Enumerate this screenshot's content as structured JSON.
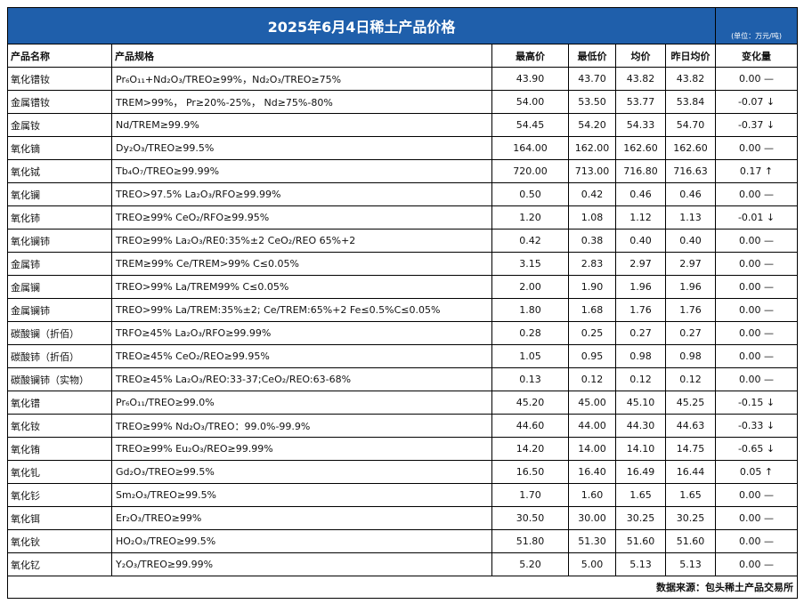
{
  "title": "2025年6月4日稀土产品价格",
  "unit_note": "(单位：万元/吨)",
  "headers": {
    "name": "产品名称",
    "spec": "产品规格",
    "high": "最高价",
    "low": "最低价",
    "avg": "均价",
    "prev_avg": "昨日均价",
    "change": "变化量"
  },
  "rows": [
    {
      "name": "氧化镨钕",
      "spec": "Pr₆O₁₁+Nd₂O₃/TREO≥99%，Nd₂O₃/TREO≥75%",
      "high": "43.90",
      "low": "43.70",
      "avg": "43.82",
      "prev_avg": "43.82",
      "change": "0.00 —"
    },
    {
      "name": "金属镨钕",
      "spec": "TREM>99%，  Pr≥20%-25%，  Nd≥75%-80%",
      "high": "54.00",
      "low": "53.50",
      "avg": "53.77",
      "prev_avg": "53.84",
      "change": "-0.07 ↓"
    },
    {
      "name": "金属钕",
      "spec": "Nd/TREM≥99.9%",
      "high": "54.45",
      "low": "54.20",
      "avg": "54.33",
      "prev_avg": "54.70",
      "change": "-0.37 ↓"
    },
    {
      "name": "氧化镝",
      "spec": "Dy₂O₃/TREO≥99.5%",
      "high": "164.00",
      "low": "162.00",
      "avg": "162.60",
      "prev_avg": "162.60",
      "change": "0.00 —"
    },
    {
      "name": "氧化铽",
      "spec": "Tb₄O₇/TREO≥99.99%",
      "high": "720.00",
      "low": "713.00",
      "avg": "716.80",
      "prev_avg": "716.63",
      "change": "0.17 ↑"
    },
    {
      "name": "氧化镧",
      "spec": "TREO>97.5%   La₂O₃/RFO≥99.99%",
      "high": "0.50",
      "low": "0.42",
      "avg": "0.46",
      "prev_avg": "0.46",
      "change": "0.00 —"
    },
    {
      "name": "氧化铈",
      "spec": "TREO≥99%   CeO₂/RFO≥99.95%",
      "high": "1.20",
      "low": "1.08",
      "avg": "1.12",
      "prev_avg": "1.13",
      "change": "-0.01 ↓"
    },
    {
      "name": "氧化镧铈",
      "spec": "TREO≥99%   La₂O₃/RE0:35%±2  CeO₂/REO  65%+2",
      "high": "0.42",
      "low": "0.38",
      "avg": "0.40",
      "prev_avg": "0.40",
      "change": "0.00 —"
    },
    {
      "name": "金属铈",
      "spec": "TREM≥99%    Ce/TREM>99%   C≤0.05%",
      "high": "3.15",
      "low": "2.83",
      "avg": "2.97",
      "prev_avg": "2.97",
      "change": "0.00 —"
    },
    {
      "name": "金属镧",
      "spec": "TREO>99%  La/TREM99%  C≤0.05%",
      "high": "2.00",
      "low": "1.90",
      "avg": "1.96",
      "prev_avg": "1.96",
      "change": "0.00 —"
    },
    {
      "name": "金属镧铈",
      "spec": "TREO>99%  La/TREM:35%±2;  Ce/TREM:65%+2 Fe≤0.5%C≤0.05%",
      "high": "1.80",
      "low": "1.68",
      "avg": "1.76",
      "prev_avg": "1.76",
      "change": "0.00 —"
    },
    {
      "name": "碳酸镧（折佰）",
      "spec": "TRFO≥45%  La₂O₃/RFO≥99.99%",
      "high": "0.28",
      "low": "0.25",
      "avg": "0.27",
      "prev_avg": "0.27",
      "change": "0.00 —"
    },
    {
      "name": "碳酸铈（折佰）",
      "spec": "TREO≥45%  CeO₂/REO≥99.95%",
      "high": "1.05",
      "low": "0.95",
      "avg": "0.98",
      "prev_avg": "0.98",
      "change": "0.00 —"
    },
    {
      "name": "碳酸镧铈（实物）",
      "spec": "TREO≥45% La₂O₃/REO:33-37;CeO₂/REO:63-68%",
      "high": "0.13",
      "low": "0.12",
      "avg": "0.12",
      "prev_avg": "0.12",
      "change": "0.00 —"
    },
    {
      "name": "氧化镨",
      "spec": "Pr₆O₁₁/TREO≥99.0%",
      "high": "45.20",
      "low": "45.00",
      "avg": "45.10",
      "prev_avg": "45.25",
      "change": "-0.15 ↓"
    },
    {
      "name": "氧化钕",
      "spec": "TREO≥99%   Nd₂O₃/TREO：99.0%-99.9%",
      "high": "44.60",
      "low": "44.00",
      "avg": "44.30",
      "prev_avg": "44.63",
      "change": "-0.33 ↓"
    },
    {
      "name": "氧化铕",
      "spec": "TREO≥99%    Eu₂O₃/REO≥99.99%",
      "high": "14.20",
      "low": "14.00",
      "avg": "14.10",
      "prev_avg": "14.75",
      "change": "-0.65 ↓"
    },
    {
      "name": "氧化钆",
      "spec": "Gd₂O₃/TREO≥99.5%",
      "high": "16.50",
      "low": "16.40",
      "avg": "16.49",
      "prev_avg": "16.44",
      "change": "0.05 ↑"
    },
    {
      "name": "氧化钐",
      "spec": "Sm₂O₃/TREO≥99.5%",
      "high": "1.70",
      "low": "1.60",
      "avg": "1.65",
      "prev_avg": "1.65",
      "change": "0.00 —"
    },
    {
      "name": "氧化铒",
      "spec": "Er₂O₃/TREO≥99%",
      "high": "30.50",
      "low": "30.00",
      "avg": "30.25",
      "prev_avg": "30.25",
      "change": "0.00 —"
    },
    {
      "name": "氧化钬",
      "spec": "HO₂O₃/TREO≥99.5%",
      "high": "51.80",
      "low": "51.30",
      "avg": "51.60",
      "prev_avg": "51.60",
      "change": "0.00 —"
    },
    {
      "name": "氧化钇",
      "spec": "Y₂O₃/TREO≥99.99%",
      "high": "5.20",
      "low": "5.00",
      "avg": "5.13",
      "prev_avg": "5.13",
      "change": "0.00 —"
    }
  ],
  "footer": "数据来源：包头稀土产品交易所",
  "colors": {
    "title_bg": "#1f5fab",
    "title_text": "#ffffff"
  }
}
